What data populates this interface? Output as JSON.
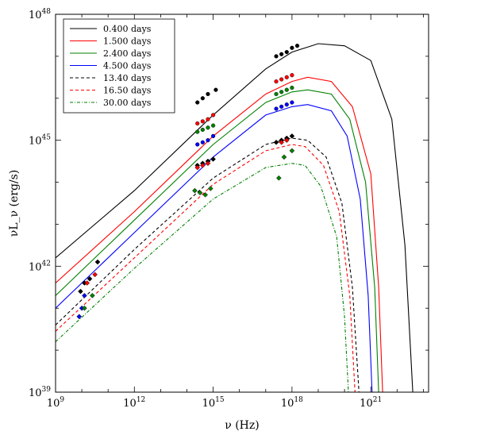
{
  "chart_data": {
    "type": "line",
    "title": "",
    "xlabel": "ν (Hz)",
    "ylabel": "νL_ν (erg/s)",
    "xscale": "log",
    "yscale": "log",
    "xlim_log10": [
      9,
      23.2
    ],
    "ylim_log10": [
      39,
      48
    ],
    "x_ticks": [
      {
        "base": "10",
        "exp": "9",
        "log10": 9
      },
      {
        "base": "10",
        "exp": "12",
        "log10": 12
      },
      {
        "base": "10",
        "exp": "15",
        "log10": 15
      },
      {
        "base": "10",
        "exp": "18",
        "log10": 18
      },
      {
        "base": "10",
        "exp": "21",
        "log10": 21
      }
    ],
    "y_ticks": [
      {
        "base": "10",
        "exp": "39",
        "log10": 39
      },
      {
        "base": "10",
        "exp": "42",
        "log10": 42
      },
      {
        "base": "10",
        "exp": "45",
        "log10": 45
      },
      {
        "base": "10",
        "exp": "48",
        "log10": 48
      }
    ],
    "grid": false,
    "legend_position": "top-left",
    "series": [
      {
        "name": "0.400 days",
        "color": "#000000",
        "dash": "solid",
        "log10_lx": [
          [
            9,
            42.2
          ],
          [
            12,
            43.8
          ],
          [
            15,
            45.6
          ],
          [
            17,
            46.7
          ],
          [
            18,
            47.1
          ],
          [
            19,
            47.3
          ],
          [
            20,
            47.25
          ],
          [
            21,
            46.9
          ],
          [
            21.8,
            45.5
          ],
          [
            22.3,
            42.5
          ],
          [
            22.6,
            39.0
          ]
        ],
        "points_log10": [
          [
            14.4,
            45.9
          ],
          [
            14.6,
            46.0
          ],
          [
            14.8,
            46.1
          ],
          [
            15.1,
            46.2
          ],
          [
            17.4,
            47.0
          ],
          [
            17.6,
            47.05
          ],
          [
            17.8,
            47.1
          ],
          [
            18.0,
            47.2
          ],
          [
            18.2,
            47.25
          ]
        ]
      },
      {
        "name": "1.500 days",
        "color": "#ff0000",
        "dash": "solid",
        "log10_lx": [
          [
            9,
            41.6
          ],
          [
            12,
            43.3
          ],
          [
            15,
            45.1
          ],
          [
            17,
            46.1
          ],
          [
            18,
            46.4
          ],
          [
            18.6,
            46.5
          ],
          [
            19.5,
            46.4
          ],
          [
            20.3,
            45.8
          ],
          [
            21,
            44.2
          ],
          [
            21.3,
            41.5
          ],
          [
            21.45,
            39.0
          ]
        ],
        "points_log10": [
          [
            14.4,
            45.4
          ],
          [
            14.6,
            45.45
          ],
          [
            14.8,
            45.5
          ],
          [
            15.0,
            45.6
          ],
          [
            17.4,
            46.4
          ],
          [
            17.6,
            46.45
          ],
          [
            17.8,
            46.5
          ],
          [
            18.0,
            46.55
          ]
        ]
      },
      {
        "name": "2.400 days",
        "color": "#008000",
        "dash": "solid",
        "log10_lx": [
          [
            9,
            41.3
          ],
          [
            12,
            43.1
          ],
          [
            15,
            44.9
          ],
          [
            17,
            45.9
          ],
          [
            18,
            46.15
          ],
          [
            18.6,
            46.2
          ],
          [
            19.5,
            46.1
          ],
          [
            20.2,
            45.5
          ],
          [
            20.8,
            44.0
          ],
          [
            21.15,
            41.5
          ],
          [
            21.3,
            39.0
          ]
        ],
        "points_log10": [
          [
            14.4,
            45.2
          ],
          [
            14.6,
            45.25
          ],
          [
            14.8,
            45.3
          ],
          [
            15.0,
            45.35
          ],
          [
            17.4,
            46.1
          ],
          [
            17.6,
            46.15
          ],
          [
            17.8,
            46.2
          ],
          [
            18.0,
            46.25
          ]
        ]
      },
      {
        "name": "4.500 days",
        "color": "#0000ff",
        "dash": "solid",
        "log10_lx": [
          [
            9,
            41.0
          ],
          [
            12,
            42.8
          ],
          [
            15,
            44.6
          ],
          [
            17,
            45.6
          ],
          [
            18,
            45.8
          ],
          [
            18.6,
            45.85
          ],
          [
            19.5,
            45.7
          ],
          [
            20.1,
            45.1
          ],
          [
            20.6,
            43.6
          ],
          [
            20.9,
            41.3
          ],
          [
            21.05,
            39.0
          ]
        ],
        "points_log10": [
          [
            14.4,
            44.9
          ],
          [
            14.6,
            44.95
          ],
          [
            14.8,
            45.0
          ],
          [
            15.0,
            45.1
          ],
          [
            17.4,
            45.75
          ],
          [
            17.6,
            45.8
          ],
          [
            17.8,
            45.85
          ],
          [
            18.0,
            45.9
          ]
        ]
      },
      {
        "name": "13.40 days",
        "color": "#000000",
        "dash": "dashed",
        "log10_lx": [
          [
            9,
            40.6
          ],
          [
            12,
            42.4
          ],
          [
            15,
            44.1
          ],
          [
            17,
            44.9
          ],
          [
            18,
            45.05
          ],
          [
            18.6,
            45.0
          ],
          [
            19.3,
            44.6
          ],
          [
            19.9,
            43.5
          ],
          [
            20.3,
            41.5
          ],
          [
            20.55,
            39.0
          ]
        ],
        "points_log10": [
          [
            14.4,
            44.4
          ],
          [
            14.6,
            44.45
          ],
          [
            14.8,
            44.5
          ],
          [
            15.0,
            44.55
          ],
          [
            17.4,
            44.95
          ],
          [
            17.6,
            45.0
          ],
          [
            17.8,
            45.05
          ],
          [
            18.0,
            45.1
          ]
        ]
      },
      {
        "name": "16.50 days",
        "color": "#ff0000",
        "dash": "dashed",
        "log10_lx": [
          [
            9,
            40.45
          ],
          [
            12,
            42.2
          ],
          [
            15,
            43.95
          ],
          [
            17,
            44.75
          ],
          [
            18,
            44.9
          ],
          [
            18.5,
            44.85
          ],
          [
            19.2,
            44.4
          ],
          [
            19.8,
            43.3
          ],
          [
            20.2,
            41.3
          ],
          [
            20.4,
            39.0
          ]
        ],
        "points_log10": [
          [
            14.4,
            44.35
          ],
          [
            14.6,
            44.4
          ],
          [
            14.8,
            44.45
          ],
          [
            17.6,
            44.95
          ],
          [
            17.8,
            45.0
          ]
        ]
      },
      {
        "name": "30.00 days",
        "color": "#008000",
        "dash": "dash-dot",
        "log10_lx": [
          [
            9,
            40.2
          ],
          [
            12,
            41.95
          ],
          [
            15,
            43.6
          ],
          [
            17,
            44.35
          ],
          [
            18,
            44.45
          ],
          [
            18.5,
            44.4
          ],
          [
            19.1,
            43.9
          ],
          [
            19.7,
            42.7
          ],
          [
            20.0,
            40.8
          ],
          [
            20.15,
            39.0
          ]
        ],
        "points_log10": [
          [
            14.3,
            43.8
          ],
          [
            14.5,
            43.75
          ],
          [
            14.7,
            43.7
          ],
          [
            14.9,
            43.85
          ],
          [
            17.5,
            44.1
          ],
          [
            17.7,
            44.6
          ],
          [
            18.0,
            44.75
          ]
        ]
      }
    ],
    "low_frequency_points_log10": [
      {
        "color": "#0000ff",
        "points": [
          [
            9.9,
            40.8
          ],
          [
            10.0,
            41.0
          ],
          [
            10.1,
            41.3
          ]
        ]
      },
      {
        "color": "#000000",
        "points": [
          [
            9.95,
            41.4
          ],
          [
            10.1,
            41.6
          ],
          [
            10.3,
            41.7
          ],
          [
            10.6,
            42.1
          ]
        ]
      },
      {
        "color": "#ff0000",
        "points": [
          [
            10.2,
            41.6
          ],
          [
            10.5,
            41.8
          ]
        ]
      },
      {
        "color": "#008000",
        "points": [
          [
            10.1,
            41.0
          ],
          [
            10.4,
            41.3
          ]
        ]
      }
    ]
  }
}
